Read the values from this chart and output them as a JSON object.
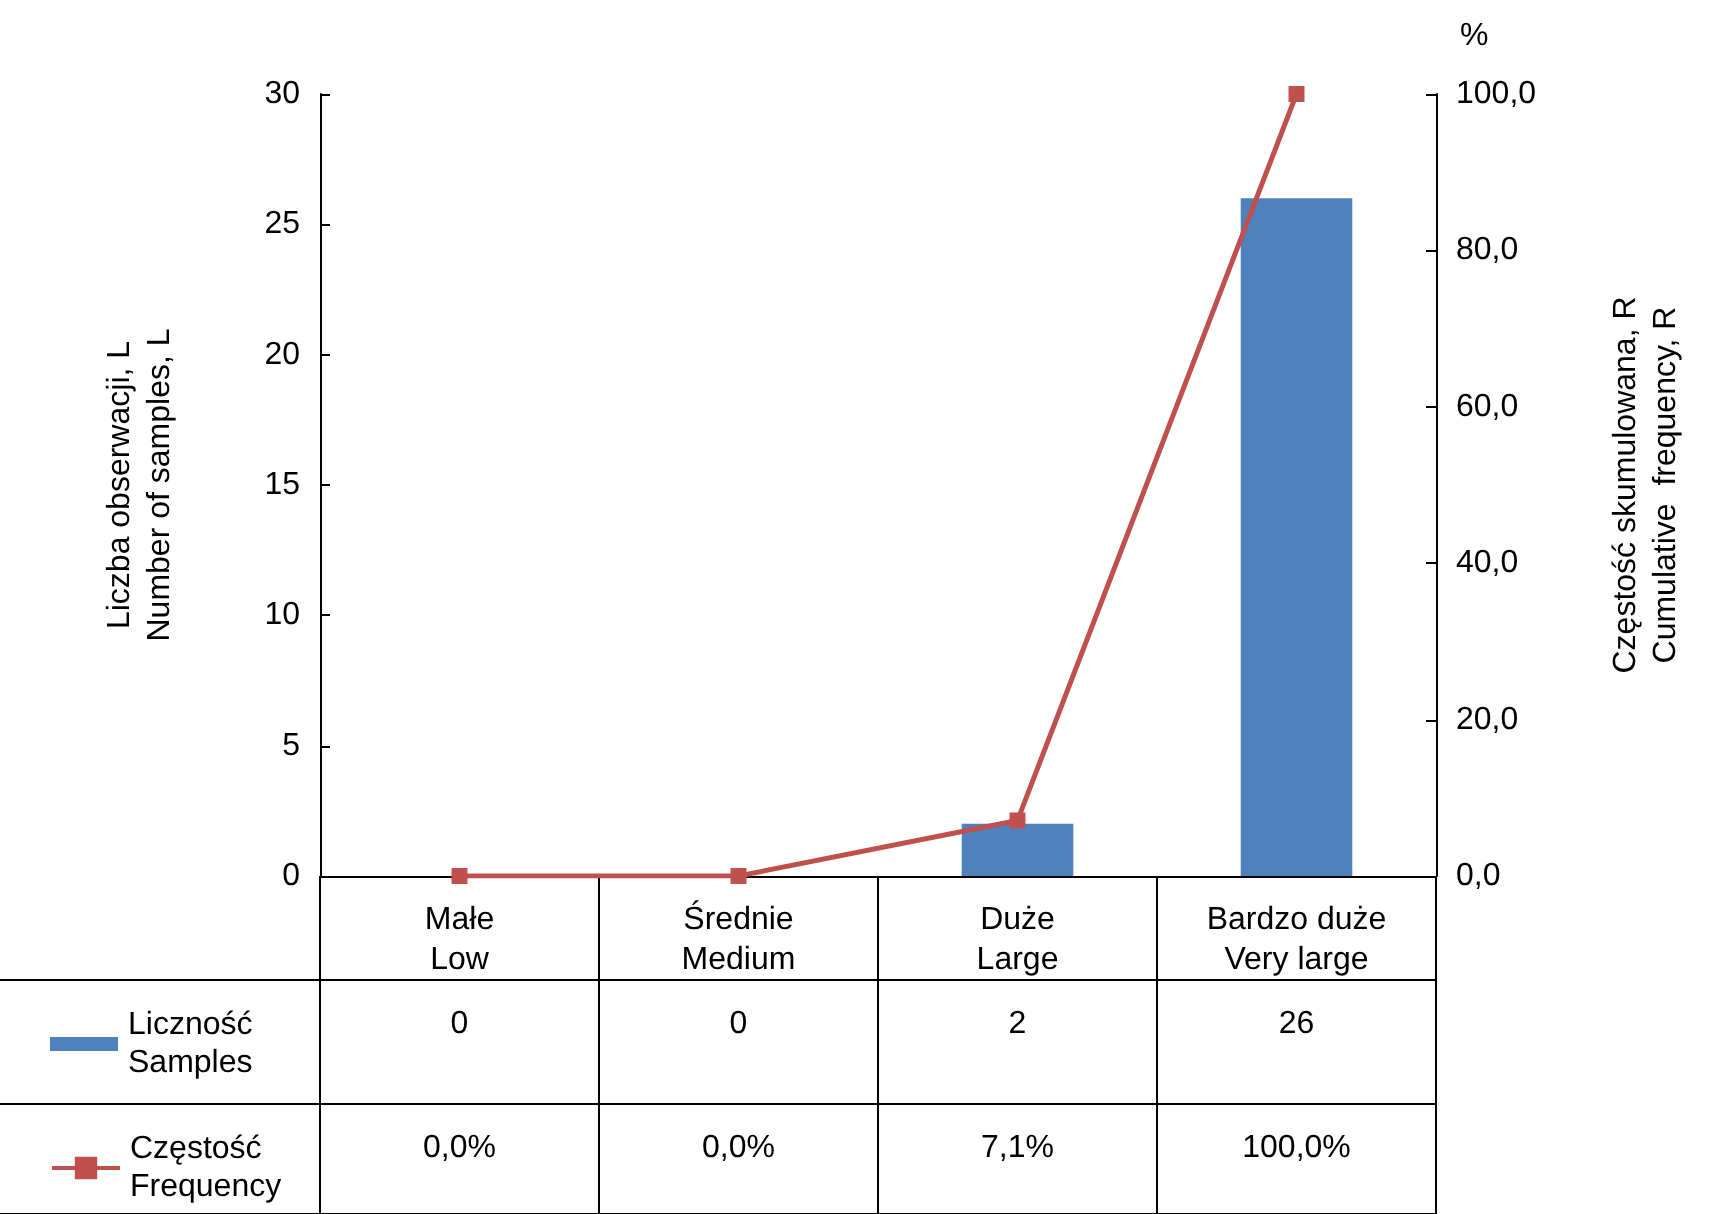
{
  "chart_data": {
    "type": "bar",
    "categories": [
      "Małe\nLow",
      "Średnie\nMedium",
      "Duże\nLarge",
      "Bardzo duże\nVery large"
    ],
    "series": [
      {
        "name": "Liczność\nSamples",
        "color": "#4f81bd",
        "values": [
          0,
          0,
          2,
          26
        ],
        "value_labels": [
          "0",
          "0",
          "2",
          "26"
        ]
      },
      {
        "name": "Częstość\nFrequency",
        "type": "line",
        "axis": "y2",
        "color": "#c0504d",
        "values": [
          0,
          0,
          7.1,
          100
        ],
        "value_labels": [
          "0,0%",
          "0,0%",
          "7,1%",
          "100,0%"
        ]
      }
    ],
    "ylabel": "Liczba obserwacji, L\nNumber of samples, L",
    "y2label": "Częstość skumulowana, R\nCumulative  frequency, R",
    "ylim": [
      0,
      30
    ],
    "yticks": [
      0,
      5,
      10,
      15,
      20,
      25,
      30
    ],
    "y2lim": [
      0,
      100
    ],
    "y2ticks": [
      {
        "value": 0,
        "label": "0,0"
      },
      {
        "value": 20,
        "label": "20,0"
      },
      {
        "value": 40,
        "label": "40,0"
      },
      {
        "value": 60,
        "label": "60,0"
      },
      {
        "value": 80,
        "label": "80,0"
      },
      {
        "value": 100,
        "label": "100,0"
      }
    ],
    "annotations": [
      "%"
    ],
    "grid": false,
    "legend": "bottom left",
    "marker": "square",
    "line_style": "solid"
  }
}
